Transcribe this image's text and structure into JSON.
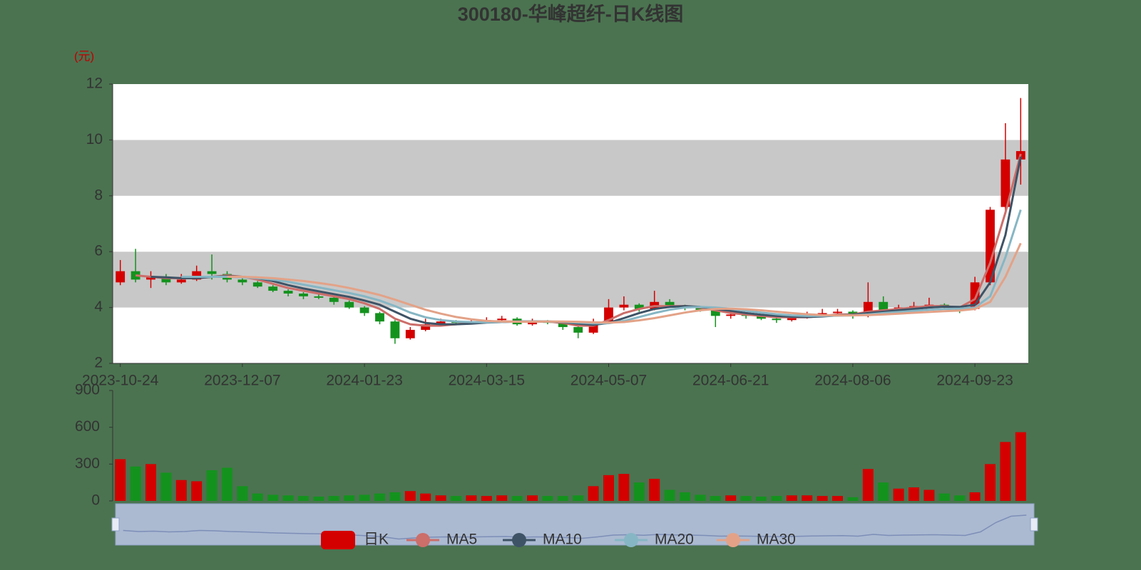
{
  "chart_data": {
    "type": "candlestick",
    "title": "300180-华峰超纤-日K线图",
    "y_unit": "(元)",
    "split_area": true,
    "up_color": "#d40000",
    "down_color": "#14921e",
    "categories": [
      "2023-10-24",
      null,
      null,
      null,
      null,
      null,
      null,
      null,
      "2023-12-07",
      null,
      null,
      null,
      null,
      null,
      null,
      null,
      "2024-01-23",
      null,
      null,
      null,
      null,
      null,
      null,
      null,
      "2024-03-15",
      null,
      null,
      null,
      null,
      null,
      null,
      null,
      "2024-05-07",
      null,
      null,
      null,
      null,
      null,
      null,
      null,
      "2024-06-21",
      null,
      null,
      null,
      null,
      null,
      null,
      null,
      "2024-08-06",
      null,
      null,
      null,
      null,
      null,
      null,
      null,
      "2024-09-23",
      null,
      null,
      null
    ],
    "ylim": [
      2,
      12
    ],
    "yticks": [
      2,
      4,
      6,
      8,
      10,
      12
    ],
    "series": [
      {
        "name": "日K",
        "type": "candlestick",
        "color": "#d40000",
        "values": [
          [
            4.9,
            5.3,
            4.8,
            5.7
          ],
          [
            5.3,
            5.0,
            4.9,
            6.1
          ],
          [
            5.0,
            5.1,
            4.7,
            5.3
          ],
          [
            5.1,
            4.9,
            4.8,
            5.2
          ],
          [
            4.9,
            5.0,
            4.85,
            5.2
          ],
          [
            5.0,
            5.3,
            4.95,
            5.5
          ],
          [
            5.3,
            5.2,
            5.0,
            5.9
          ],
          [
            5.2,
            5.0,
            4.9,
            5.3
          ],
          [
            5.0,
            4.9,
            4.8,
            5.05
          ],
          [
            4.9,
            4.75,
            4.7,
            4.95
          ],
          [
            4.75,
            4.6,
            4.55,
            4.8
          ],
          [
            4.6,
            4.5,
            4.4,
            4.65
          ],
          [
            4.5,
            4.4,
            4.3,
            4.55
          ],
          [
            4.4,
            4.35,
            4.3,
            4.5
          ],
          [
            4.35,
            4.2,
            4.1,
            4.4
          ],
          [
            4.2,
            4.0,
            3.95,
            4.25
          ],
          [
            4.0,
            3.8,
            3.7,
            4.05
          ],
          [
            3.8,
            3.5,
            3.4,
            3.85
          ],
          [
            3.5,
            2.9,
            2.7,
            3.55
          ],
          [
            2.9,
            3.2,
            2.85,
            3.3
          ],
          [
            3.2,
            3.4,
            3.15,
            3.6
          ],
          [
            3.4,
            3.5,
            3.35,
            3.6
          ],
          [
            3.5,
            3.45,
            3.4,
            3.55
          ],
          [
            3.45,
            3.5,
            3.4,
            3.6
          ],
          [
            3.5,
            3.55,
            3.45,
            3.65
          ],
          [
            3.55,
            3.6,
            3.5,
            3.7
          ],
          [
            3.6,
            3.4,
            3.35,
            3.65
          ],
          [
            3.4,
            3.5,
            3.35,
            3.6
          ],
          [
            3.5,
            3.45,
            3.4,
            3.55
          ],
          [
            3.45,
            3.3,
            3.2,
            3.5
          ],
          [
            3.3,
            3.1,
            2.9,
            3.35
          ],
          [
            3.1,
            3.5,
            3.05,
            3.6
          ],
          [
            3.5,
            4.0,
            3.45,
            4.3
          ],
          [
            4.0,
            4.1,
            3.9,
            4.4
          ],
          [
            4.1,
            3.95,
            3.85,
            4.15
          ],
          [
            3.95,
            4.2,
            3.9,
            4.6
          ],
          [
            4.2,
            4.05,
            4.0,
            4.3
          ],
          [
            4.05,
            4.0,
            3.9,
            4.1
          ],
          [
            4.0,
            3.9,
            3.85,
            4.05
          ],
          [
            3.9,
            3.7,
            3.3,
            3.95
          ],
          [
            3.7,
            3.75,
            3.6,
            3.9
          ],
          [
            3.75,
            3.7,
            3.6,
            3.8
          ],
          [
            3.7,
            3.6,
            3.55,
            3.75
          ],
          [
            3.6,
            3.55,
            3.45,
            3.65
          ],
          [
            3.55,
            3.65,
            3.5,
            3.7
          ],
          [
            3.65,
            3.75,
            3.6,
            3.85
          ],
          [
            3.75,
            3.8,
            3.7,
            3.95
          ],
          [
            3.8,
            3.85,
            3.75,
            3.95
          ],
          [
            3.85,
            3.7,
            3.6,
            3.9
          ],
          [
            3.7,
            4.2,
            3.65,
            4.9
          ],
          [
            4.2,
            3.9,
            3.85,
            4.4
          ],
          [
            3.9,
            4.0,
            3.85,
            4.1
          ],
          [
            4.0,
            4.05,
            3.95,
            4.2
          ],
          [
            4.05,
            4.1,
            4.0,
            4.35
          ],
          [
            4.1,
            4.0,
            3.95,
            4.15
          ],
          [
            4.0,
            3.9,
            3.8,
            4.05
          ],
          [
            3.95,
            4.9,
            3.9,
            5.1
          ],
          [
            4.9,
            7.5,
            4.8,
            7.6
          ],
          [
            7.6,
            9.3,
            7.4,
            10.6
          ],
          [
            9.3,
            9.6,
            8.4,
            11.5
          ]
        ]
      },
      {
        "name": "MA5",
        "type": "line",
        "color": "#cc6e6a",
        "values": [
          null,
          5.15,
          5.1,
          5.05,
          5.05,
          5.05,
          5.1,
          5.15,
          5.1,
          5.0,
          4.85,
          4.7,
          4.6,
          4.5,
          4.4,
          4.3,
          4.15,
          3.95,
          3.6,
          3.4,
          3.35,
          3.35,
          3.4,
          3.45,
          3.5,
          3.5,
          3.5,
          3.5,
          3.5,
          3.45,
          3.35,
          3.35,
          3.55,
          3.8,
          3.95,
          4.05,
          4.05,
          4.05,
          4.0,
          3.9,
          3.8,
          3.75,
          3.7,
          3.65,
          3.65,
          3.65,
          3.7,
          3.75,
          3.75,
          3.85,
          3.9,
          3.95,
          4.0,
          4.05,
          4.05,
          4.0,
          4.3,
          5.6,
          7.4,
          9.5
        ]
      },
      {
        "name": "MA10",
        "type": "line",
        "color": "#3e5366",
        "values": [
          null,
          null,
          5.1,
          5.08,
          5.05,
          5.05,
          5.1,
          5.12,
          5.1,
          5.05,
          4.95,
          4.8,
          4.68,
          4.58,
          4.48,
          4.38,
          4.25,
          4.1,
          3.85,
          3.6,
          3.45,
          3.4,
          3.4,
          3.42,
          3.46,
          3.48,
          3.5,
          3.5,
          3.5,
          3.48,
          3.42,
          3.38,
          3.45,
          3.62,
          3.8,
          3.95,
          4.02,
          4.05,
          4.02,
          3.95,
          3.88,
          3.8,
          3.74,
          3.7,
          3.67,
          3.66,
          3.68,
          3.72,
          3.74,
          3.8,
          3.85,
          3.9,
          3.95,
          4.0,
          4.03,
          4.02,
          4.1,
          4.9,
          6.6,
          9.4
        ]
      },
      {
        "name": "MA20",
        "type": "line",
        "color": "#86b6c4",
        "values": [
          null,
          null,
          null,
          null,
          5.1,
          5.1,
          5.1,
          5.1,
          5.08,
          5.05,
          5.0,
          4.92,
          4.82,
          4.72,
          4.62,
          4.52,
          4.4,
          4.25,
          4.05,
          3.82,
          3.65,
          3.55,
          3.5,
          3.48,
          3.47,
          3.48,
          3.5,
          3.5,
          3.5,
          3.49,
          3.46,
          3.43,
          3.44,
          3.52,
          3.66,
          3.8,
          3.92,
          4.0,
          4.02,
          4.0,
          3.95,
          3.88,
          3.82,
          3.76,
          3.72,
          3.7,
          3.7,
          3.71,
          3.72,
          3.75,
          3.8,
          3.84,
          3.88,
          3.92,
          3.95,
          3.96,
          4.0,
          4.4,
          5.8,
          7.5
        ]
      },
      {
        "name": "MA30",
        "type": "line",
        "color": "#e3a287",
        "values": [
          null,
          null,
          null,
          null,
          null,
          null,
          null,
          5.1,
          5.1,
          5.08,
          5.05,
          5.0,
          4.95,
          4.88,
          4.8,
          4.7,
          4.58,
          4.45,
          4.28,
          4.1,
          3.92,
          3.78,
          3.66,
          3.58,
          3.52,
          3.5,
          3.49,
          3.49,
          3.5,
          3.5,
          3.49,
          3.47,
          3.46,
          3.48,
          3.54,
          3.62,
          3.72,
          3.82,
          3.9,
          3.95,
          3.96,
          3.94,
          3.9,
          3.85,
          3.8,
          3.76,
          3.73,
          3.72,
          3.72,
          3.73,
          3.75,
          3.78,
          3.81,
          3.84,
          3.87,
          3.89,
          3.95,
          4.2,
          5.1,
          6.3
        ]
      }
    ],
    "volume": {
      "ylim": [
        0,
        900
      ],
      "yticks": [
        0,
        300,
        600,
        900
      ],
      "values": [
        340,
        280,
        300,
        230,
        170,
        160,
        250,
        270,
        120,
        60,
        50,
        45,
        40,
        35,
        40,
        45,
        50,
        60,
        70,
        80,
        60,
        45,
        40,
        45,
        40,
        45,
        40,
        45,
        40,
        40,
        45,
        120,
        210,
        220,
        150,
        180,
        90,
        70,
        50,
        40,
        45,
        40,
        35,
        40,
        45,
        45,
        40,
        40,
        30,
        260,
        150,
        100,
        110,
        90,
        60,
        45,
        70,
        300,
        480,
        560
      ]
    }
  }
}
